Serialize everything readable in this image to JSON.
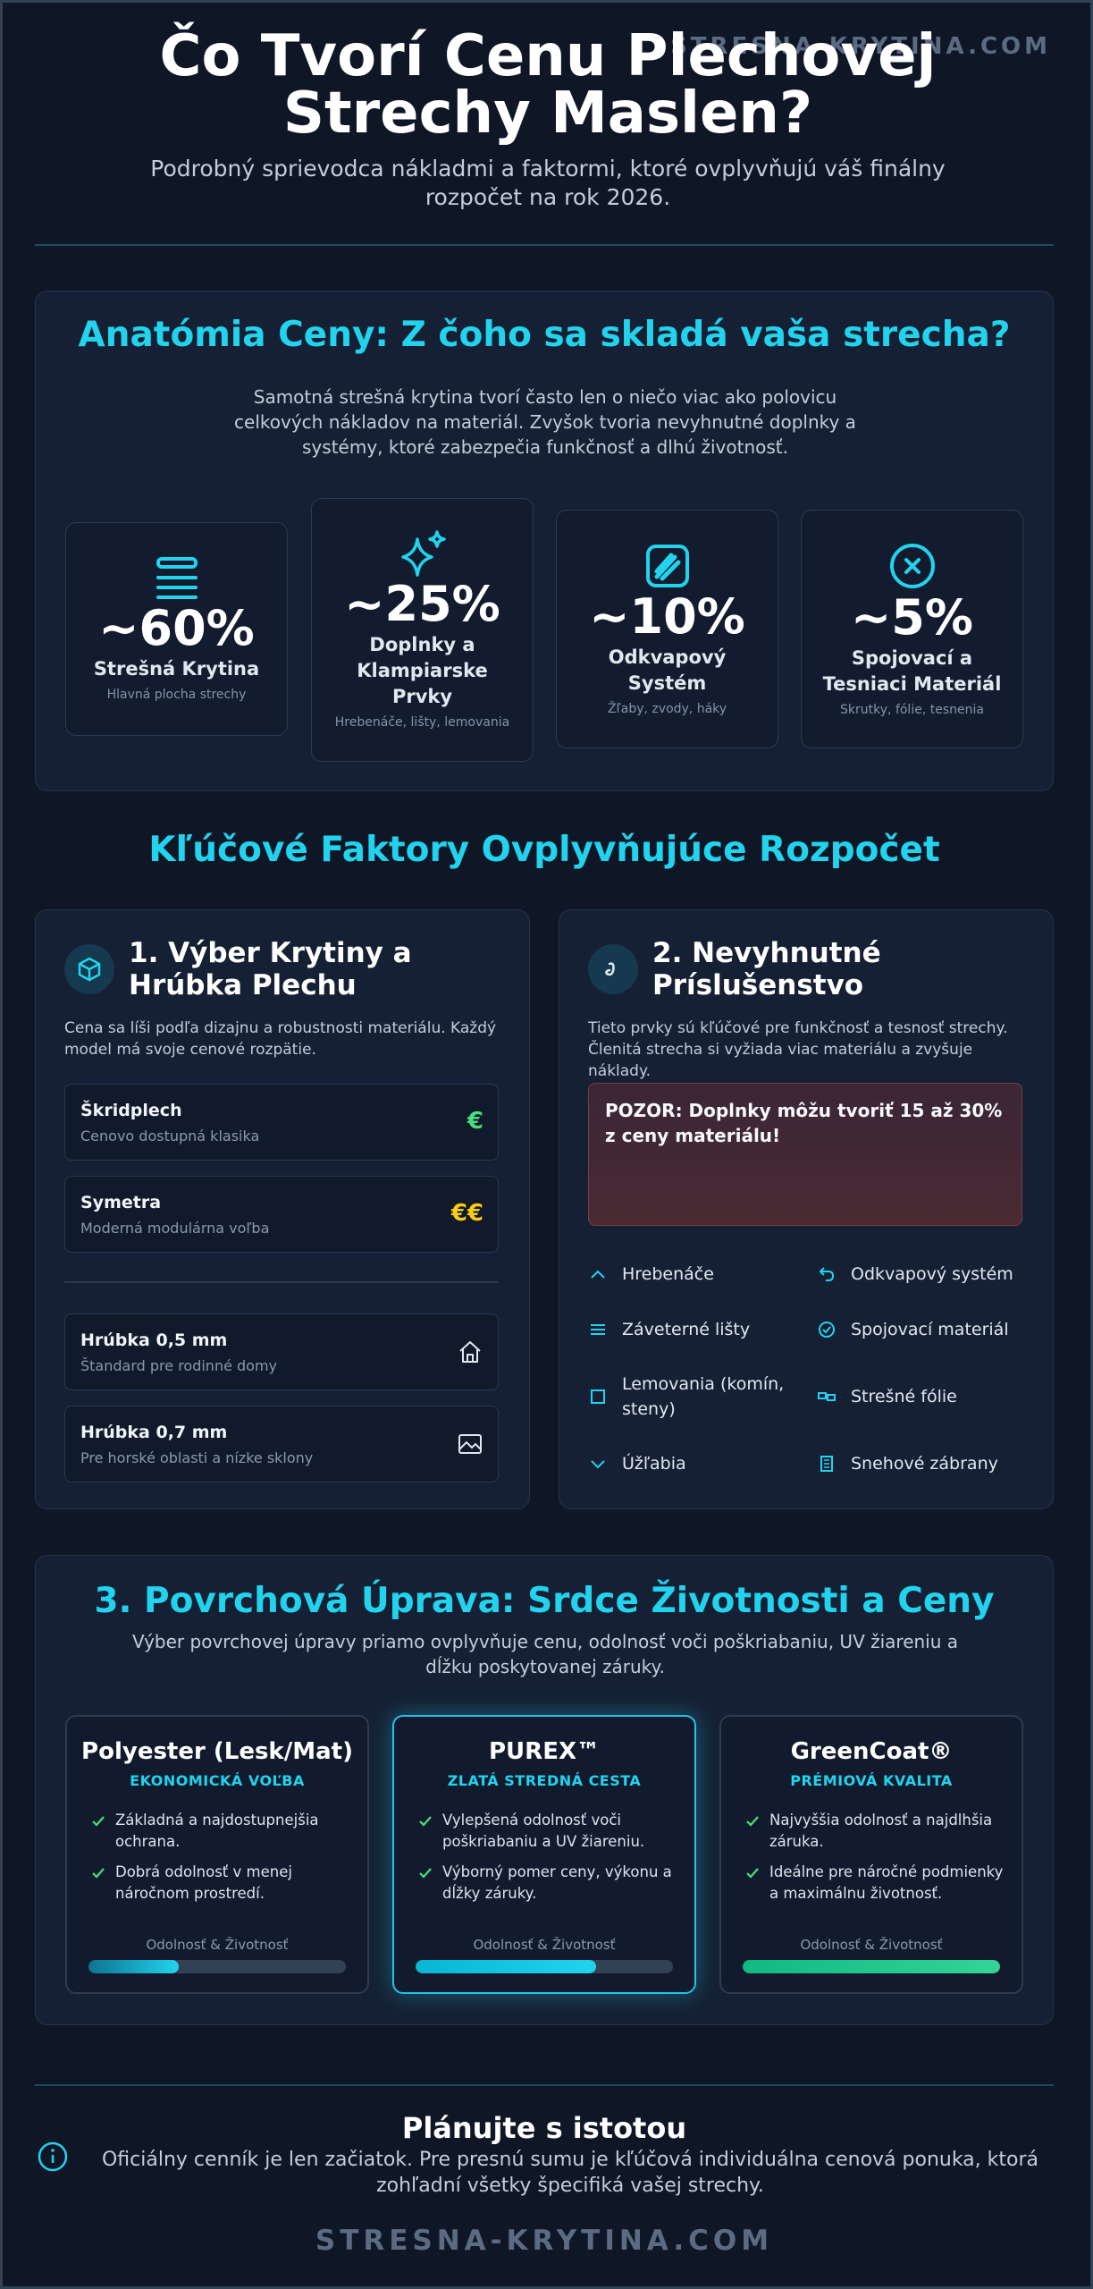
{
  "header": {
    "watermark": "STRESNA-KRYTINA.COM",
    "title": "Čo Tvorí Cenu Plechovej Strechy Maslen?",
    "subtitle": "Podrobný sprievodca nákladmi a faktormi, ktoré ovplyvňujú váš finálny rozpočet na rok 2026."
  },
  "anatomy": {
    "title": "Anatómia Ceny: Z čoho sa skladá vaša strecha?",
    "intro": "Samotná strešná krytina tvorí často len o niečo viac ako polovicu celkových nákladov na materiál. Zvyšok tvoria nevyhnutné doplnky a systémy, ktoré zabezpečia funkčnosť a dlhú životnosť.",
    "cards": [
      {
        "percent": "~60%",
        "title": "Strešná Krytina",
        "note": "Hlavná plocha strechy"
      },
      {
        "percent": "~25%",
        "title": "Doplnky a Klampiarske Prvky",
        "note": "Hrebenáče, lišty, lemovania"
      },
      {
        "percent": "~10%",
        "title": "Odkvapový Systém",
        "note": "Žľaby, zvody, háky"
      },
      {
        "percent": "~5%",
        "title": "Spojovací a Tesniaci Materiál",
        "note": "Skrutky, fólie, tesnenia"
      }
    ]
  },
  "factors": {
    "title": "Kľúčové Faktory Ovplyvňujúce Rozpočet",
    "material": {
      "title": "1. Výber Krytiny a Hrúbka Plechu",
      "intro": "Cena sa líši podľa dizajnu a robustnosti materiálu. Každý model má svoje cenové rozpätie.",
      "options": [
        {
          "name": "Škridplech",
          "note": "Cenovo dostupná klasika",
          "badge": "€"
        },
        {
          "name": "Symetra",
          "note": "Moderná modulárna voľba",
          "badge": "€€"
        }
      ],
      "thickness": [
        {
          "name": "Hrúbka 0,5 mm",
          "note": "Štandard pre rodinné domy"
        },
        {
          "name": "Hrúbka 0,7 mm",
          "note": "Pre horské oblasti a nízke sklony"
        }
      ]
    },
    "accessories": {
      "title": "2. Nevyhnutné Príslušenstvo",
      "intro": "Tieto prvky sú kľúčové pre funkčnosť a tesnosť strechy. Členitá strecha si vyžiada viac materiálu a zvyšuje náklady.",
      "warning": "POZOR: Doplnky môžu tvoriť 15 až 30% z ceny materiálu!",
      "items": [
        "Hrebenáče",
        "Odkvapový systém",
        "Záveterné lišty",
        "Spojovací materiál",
        "Lemovania (komín, steny)",
        "Strešné fólie",
        "Úžľabia",
        "Snehové zábrany"
      ]
    }
  },
  "surface": {
    "title": "3. Povrchová Úprava: Srdce Životnosti a Ceny",
    "intro": "Výber povrchovej úpravy priamo ovplyvňuje cenu, odolnosť voči poškriabaniu, UV žiareniu a dĺžku poskytovanej záruky.",
    "meter_label": "Odolnosť & Životnosť",
    "cards": [
      {
        "name": "Polyester (Lesk/Mat)",
        "tier": "EKONOMICKÁ VOĽBA",
        "points": [
          "Základná a najdostupnejšia ochrana.",
          "Dobrá odolnosť v menej náročnom prostredí."
        ],
        "level": 35
      },
      {
        "name": "PUREX™",
        "tier": "ZLATÁ STREDNÁ CESTA",
        "points": [
          "Vylepšená odolnosť voči poškriabaniu a UV žiareniu.",
          "Výborný pomer ceny, výkonu a dĺžky záruky."
        ],
        "level": 70
      },
      {
        "name": "GreenCoat®",
        "tier": "PRÉMIOVÁ KVALITA",
        "points": [
          "Najvyššia odolnosť a najdlhšia záruka.",
          "Ideálne pre náročné podmienky a maximálnu životnosť."
        ],
        "level": 100
      }
    ]
  },
  "footer": {
    "title": "Plánujte s istotou",
    "text": "Oficiálny cenník je len začiatok. Pre presnú sumu je kľúčová individuálna cenová ponuka, ktorá zohľadní všetky špecifiká vašej strechy.",
    "brand": "STRESNA-KRYTINA.COM"
  }
}
